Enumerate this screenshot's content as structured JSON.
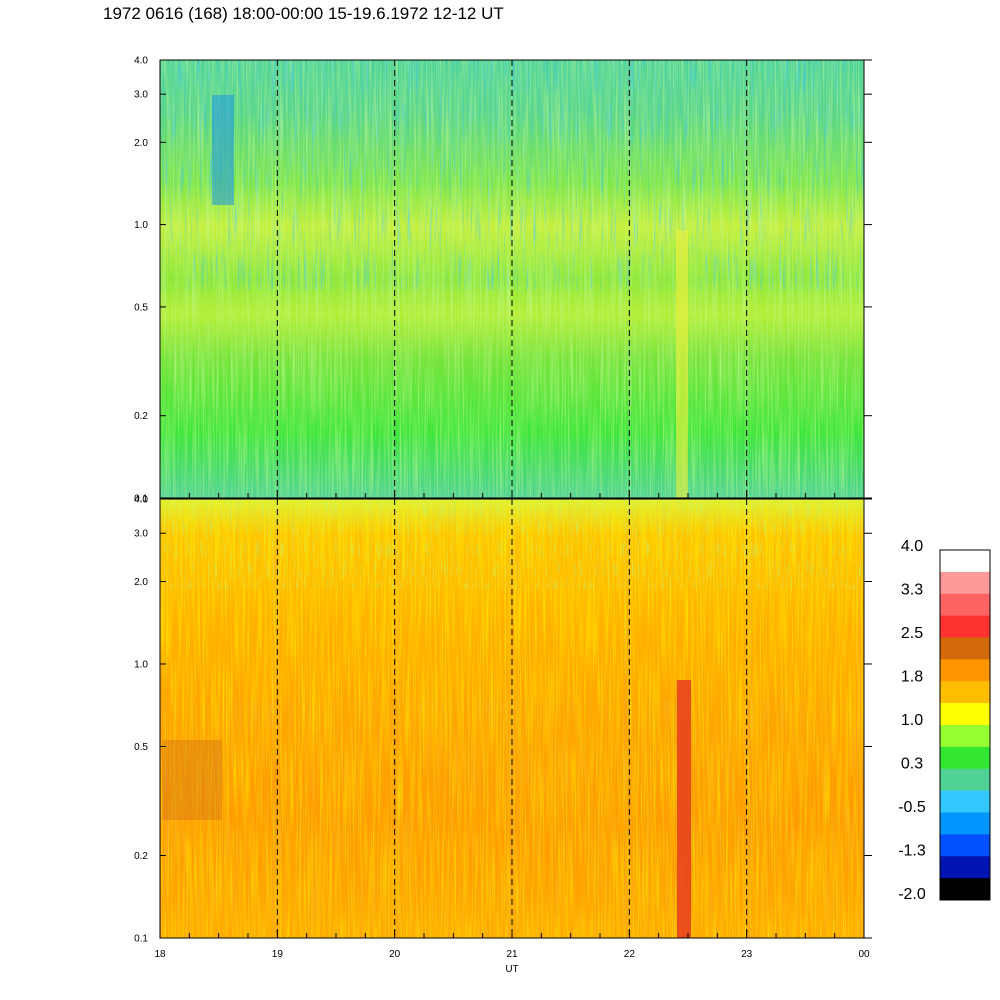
{
  "title": "1972 0616 (168) 18:00-00:00 15-19.6.1972  12-12 UT",
  "chart_data": [
    {
      "type": "heatmap",
      "panel": "upper",
      "title": "",
      "xlabel": "UT",
      "ylabel": "",
      "x_ticks": [
        "18",
        "19",
        "20",
        "21",
        "22",
        "23",
        "00"
      ],
      "x_range": [
        18,
        24
      ],
      "y_scale": "log",
      "y_range": [
        0.1,
        4.0
      ],
      "y_ticks": [
        "0.1",
        "0.2",
        "0.5",
        "1.0",
        "2.0",
        "3.0",
        "4.0"
      ],
      "hour_dividers": [
        "19",
        "20",
        "21",
        "22",
        "23"
      ],
      "dominant_values": {
        "below_0.5": 0.3,
        "0.5_to_1.0": 0.9,
        "above_1.0": 0.3
      },
      "features": [
        {
          "text": "low values (blue) near 18.5 UT at 1-3",
          "x": 18.55,
          "y": 1.8
        },
        {
          "text": "yellow band near 1.0",
          "x": 20.2,
          "y": 1.0
        },
        {
          "text": "yellow streak at 22.45 UT",
          "x": 22.45,
          "y": 0.2
        }
      ]
    },
    {
      "type": "heatmap",
      "panel": "lower",
      "title": "",
      "xlabel": "UT",
      "ylabel": "",
      "x_ticks": [
        "18",
        "19",
        "20",
        "21",
        "22",
        "23",
        "00"
      ],
      "x_range": [
        18,
        24
      ],
      "y_scale": "log",
      "y_range": [
        0.1,
        4.0
      ],
      "y_ticks": [
        "0.1",
        "0.2",
        "0.5",
        "1.0",
        "2.0",
        "3.0",
        "4.0"
      ],
      "hour_dividers": [
        "19",
        "20",
        "21",
        "22",
        "23"
      ],
      "dominant_values": {
        "below_0.5": 2.0,
        "0.5_to_2.0": 1.7,
        "above_2.0": 1.1
      },
      "features": [
        {
          "text": "red streak at 22.45 UT",
          "x": 22.45,
          "y": 0.15
        },
        {
          "text": "darker orange near 18.1-18.5 UT at 0.3-0.5",
          "x": 18.3,
          "y": 0.4
        }
      ]
    }
  ],
  "colorbar": {
    "labels": [
      "4.0",
      "3.3",
      "2.5",
      "1.8",
      "1.0",
      "0.3",
      "-0.5",
      "-1.3",
      "-2.0"
    ],
    "colors": [
      "#ffffff",
      "#ff9a9a",
      "#ff6464",
      "#ff3232",
      "#d2690a",
      "#ff9600",
      "#ffbe00",
      "#ffff00",
      "#96ff32",
      "#32e632",
      "#50d296",
      "#32c8ff",
      "#0096ff",
      "#0050ff",
      "#0014b4",
      "#000000"
    ]
  }
}
